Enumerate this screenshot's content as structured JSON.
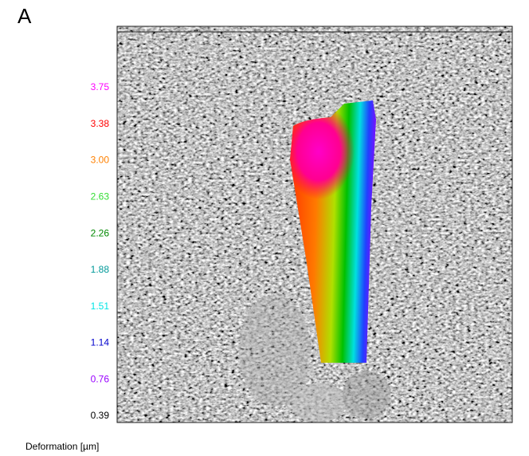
{
  "panel_label": "A",
  "scale": {
    "caption": "Deformation [µm]",
    "labels": [
      {
        "text": "3.75",
        "color": "#ff00ff"
      },
      {
        "text": "3.38",
        "color": "#ff0000"
      },
      {
        "text": "3.00",
        "color": "#ff8000"
      },
      {
        "text": "2.63",
        "color": "#33dd33"
      },
      {
        "text": "2.26",
        "color": "#008800"
      },
      {
        "text": "1.88",
        "color": "#009999"
      },
      {
        "text": "1.51",
        "color": "#00e5e5"
      },
      {
        "text": "1.14",
        "color": "#0000cc"
      },
      {
        "text": "0.76",
        "color": "#9900ff"
      },
      {
        "text": "0.39",
        "color": "#000000"
      }
    ]
  }
}
